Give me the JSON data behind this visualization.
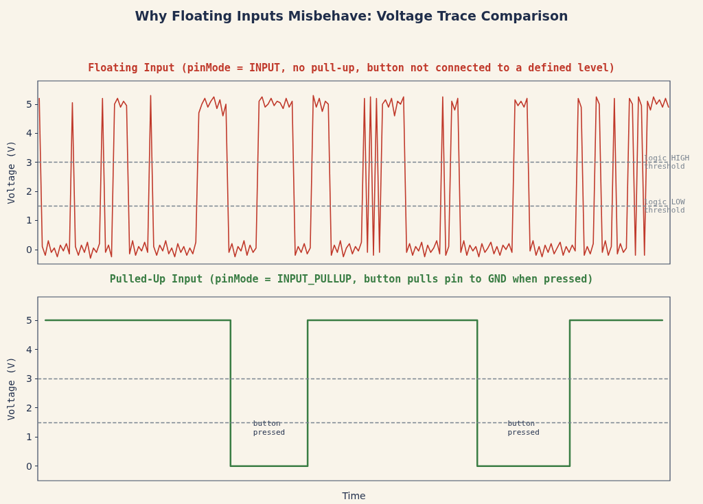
{
  "chart_data": [
    {
      "type": "line",
      "title": "Why Floating Inputs Misbehave: Voltage Trace Comparison",
      "subtitle": "Floating Input (pinMode = INPUT, no pull-up, button not connected to a defined level)",
      "ylabel": "Voltage (V)",
      "categories": [
        null,
        null,
        null,
        null,
        null,
        null,
        null,
        null,
        null,
        null,
        null,
        null,
        null,
        null,
        null,
        null,
        null,
        null,
        null,
        null,
        null,
        null,
        null,
        null,
        null,
        null,
        null,
        null,
        null,
        null,
        null,
        null,
        null,
        null,
        null,
        null,
        null,
        null,
        null,
        null,
        null,
        null,
        null,
        null,
        null,
        null,
        null,
        null,
        null,
        null,
        null,
        null,
        null,
        null,
        null,
        null,
        null,
        null,
        null,
        null,
        null,
        null,
        null,
        null,
        null,
        null,
        null,
        null,
        null,
        null,
        null,
        null,
        null,
        null,
        null,
        null,
        null,
        null,
        null,
        null,
        null,
        null,
        null,
        null,
        null,
        null,
        null,
        null,
        null,
        null,
        null,
        null,
        null,
        null,
        null,
        null,
        null,
        null,
        null,
        null,
        null,
        null,
        null,
        null,
        null,
        null,
        null,
        null,
        null,
        null,
        null,
        null,
        null,
        null,
        null,
        null,
        null,
        null,
        null,
        null,
        null,
        null,
        null,
        null,
        null,
        null,
        null,
        null,
        null,
        null,
        null,
        null,
        null,
        null,
        null,
        null,
        null,
        null,
        null,
        null,
        null,
        null,
        null,
        null,
        null,
        null,
        null,
        null,
        null,
        null,
        null,
        null,
        null,
        null,
        null,
        null,
        null,
        null,
        null,
        null,
        null,
        null,
        null,
        null,
        null,
        null,
        null,
        null,
        null,
        null,
        null,
        null,
        null,
        null,
        null,
        null,
        null,
        null,
        null,
        null,
        null,
        null,
        null,
        null,
        null,
        null,
        null,
        null,
        null,
        null,
        null,
        null,
        null,
        null,
        null,
        null,
        null,
        null,
        null,
        null,
        null,
        null,
        null,
        null,
        null,
        null,
        null,
        null,
        null,
        null
      ],
      "series": [
        {
          "color": "#c0392b",
          "values": [
            5.2,
            0.1,
            -0.2,
            0.3,
            -0.1,
            0.05,
            -0.25,
            0.15,
            -0.05,
            0.2,
            -0.15,
            5.05,
            0.1,
            -0.2,
            0.15,
            -0.1,
            0.25,
            -0.3,
            0.05,
            -0.1,
            0.2,
            5.2,
            -0.1,
            0.15,
            -0.25,
            5.0,
            5.2,
            4.9,
            5.1,
            4.95,
            -0.15,
            0.3,
            -0.2,
            0.1,
            -0.05,
            0.25,
            -0.1,
            5.3,
            0.1,
            -0.2,
            0.15,
            -0.05,
            0.3,
            -0.15,
            0.05,
            -0.25,
            0.2,
            -0.1,
            0.1,
            -0.2,
            0.05,
            -0.15,
            0.25,
            4.7,
            5.0,
            5.2,
            4.9,
            5.1,
            5.25,
            4.85,
            5.15,
            4.6,
            5.0,
            -0.1,
            0.2,
            -0.25,
            0.1,
            -0.05,
            0.3,
            -0.2,
            0.15,
            -0.1,
            0.05,
            5.1,
            5.25,
            4.9,
            5.0,
            5.2,
            4.95,
            5.1,
            5.05,
            4.85,
            5.2,
            4.9,
            5.1,
            -0.2,
            0.1,
            -0.1,
            0.2,
            -0.15,
            0.05,
            5.3,
            4.9,
            5.2,
            4.75,
            5.1,
            5.0,
            -0.2,
            0.15,
            -0.1,
            0.3,
            -0.25,
            0.05,
            0.2,
            -0.15,
            0.1,
            -0.05,
            0.25,
            5.2,
            -0.1,
            5.25,
            -0.2,
            5.2,
            -0.1,
            5.0,
            5.15,
            4.9,
            5.2,
            4.6,
            5.1,
            5.0,
            5.25,
            -0.1,
            0.2,
            -0.2,
            0.1,
            -0.05,
            0.25,
            -0.25,
            0.15,
            -0.1,
            0.05,
            0.3,
            -0.15,
            5.25,
            -0.2,
            0.1,
            5.1,
            4.8,
            5.2,
            -0.1,
            0.3,
            -0.2,
            0.15,
            -0.05,
            0.1,
            -0.25,
            0.2,
            -0.1,
            0.05,
            0.25,
            -0.15,
            0.1,
            -0.2,
            0.15,
            0,
            0.2,
            -0.1,
            5.15,
            4.95,
            5.1,
            4.9,
            5.2,
            -0.05,
            0.3,
            -0.2,
            0.1,
            -0.25,
            0.15,
            -0.1,
            0.2,
            -0.15,
            0.05,
            0.25,
            -0.2,
            0.1,
            -0.1,
            0.15,
            -0.05,
            5.2,
            4.9,
            -0.2,
            0.1,
            -0.15,
            0.2,
            5.25,
            5.0,
            -0.1,
            0.3,
            -0.2,
            0.1,
            5.2,
            -0.15,
            0.2,
            -0.1,
            0.05,
            5.2,
            5.0,
            -0.2,
            5.25,
            4.95,
            -0.2,
            5.1,
            4.8,
            5.25,
            5.0,
            5.15,
            4.9,
            5.2,
            4.9
          ]
        }
      ],
      "ylim": [
        -0.5,
        5.8
      ],
      "yticks": [
        0,
        1,
        2,
        3,
        4,
        5
      ],
      "grid": false,
      "tick_labels": "y",
      "marker": "none",
      "line_style": "solid",
      "ref_lines": [
        {
          "axis": "y",
          "value": 3,
          "label": "logic HIGH threshold",
          "color": "#7a8490",
          "line_style": "dashed"
        },
        {
          "axis": "y",
          "value": 1.5,
          "label": "logic LOW threshold",
          "color": "#7a8490",
          "line_style": "dashed"
        }
      ]
    },
    {
      "type": "step",
      "title": "Pulled-Up Input (pinMode = INPUT_PULLUP, button pulls pin to GND when pressed)",
      "xlabel": "Time",
      "ylabel": "Voltage (V)",
      "categories": [
        null,
        null,
        null,
        null,
        null,
        null,
        null,
        null,
        null,
        null,
        null,
        null,
        null,
        null,
        null,
        null,
        null,
        null,
        null,
        null,
        null,
        null,
        null,
        null,
        null,
        null,
        null,
        null,
        null,
        null,
        null,
        null,
        null,
        null,
        null,
        null,
        null,
        null,
        null,
        null,
        null
      ],
      "series": [
        {
          "color": "#3a7d44",
          "values": [
            5,
            5,
            5,
            5,
            5,
            5,
            5,
            5,
            5,
            5,
            5,
            5,
            0,
            0,
            0,
            0,
            0,
            5,
            5,
            5,
            5,
            5,
            5,
            5,
            5,
            5,
            5,
            5,
            0,
            0,
            0,
            0,
            0,
            0,
            5,
            5,
            5,
            5,
            5,
            5,
            5
          ]
        }
      ],
      "ylim": [
        -0.5,
        5.8
      ],
      "yticks": [
        0,
        1,
        2,
        3,
        4,
        5
      ],
      "grid": false,
      "tick_labels": "y",
      "marker": "none",
      "line_style": "solid",
      "ref_lines": [
        {
          "axis": "y",
          "value": 3,
          "color": "#7a8490",
          "line_style": "dashed"
        },
        {
          "axis": "y",
          "value": 1.5,
          "color": "#7a8490",
          "line_style": "dashed"
        }
      ],
      "annotations": [
        "button pressed",
        "button pressed"
      ]
    }
  ]
}
